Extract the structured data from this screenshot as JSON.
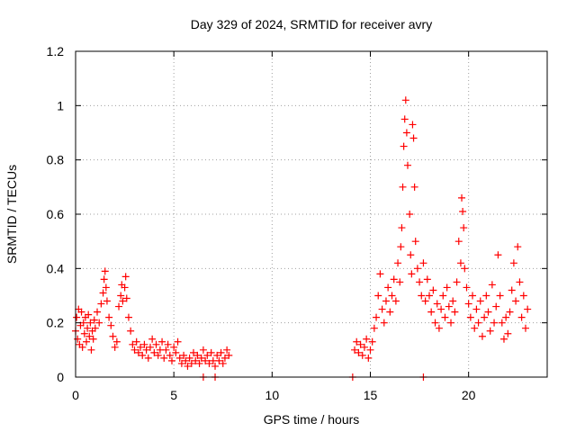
{
  "chart_data": {
    "type": "scatter",
    "title": "Day 329 of 2024, SRMTID for receiver avry",
    "xlabel": "GPS time / hours",
    "ylabel": "SRMTID / TECUs",
    "xlim": [
      0,
      24
    ],
    "ylim": [
      0,
      1.2
    ],
    "xticks": [
      0,
      5,
      10,
      15,
      20
    ],
    "xtick_labels": [
      "0",
      "5",
      "10",
      "15",
      "20"
    ],
    "yticks": [
      0,
      0.2,
      0.4,
      0.6,
      0.8,
      1,
      1.2
    ],
    "ytick_labels": [
      "0",
      "0.2",
      "0.4",
      "0.6",
      "0.8",
      "1",
      "1.2"
    ],
    "grid": true,
    "marker": "+",
    "color": "#ff0000",
    "series": [
      {
        "name": "SRMTID",
        "points": [
          [
            0.0,
            0.17
          ],
          [
            0.05,
            0.22
          ],
          [
            0.1,
            0.14
          ],
          [
            0.15,
            0.25
          ],
          [
            0.2,
            0.12
          ],
          [
            0.25,
            0.19
          ],
          [
            0.3,
            0.24
          ],
          [
            0.35,
            0.11
          ],
          [
            0.4,
            0.2
          ],
          [
            0.45,
            0.16
          ],
          [
            0.5,
            0.22
          ],
          [
            0.55,
            0.13
          ],
          [
            0.6,
            0.18
          ],
          [
            0.65,
            0.23
          ],
          [
            0.7,
            0.15
          ],
          [
            0.75,
            0.2
          ],
          [
            0.8,
            0.1
          ],
          [
            0.85,
            0.17
          ],
          [
            0.9,
            0.14
          ],
          [
            0.95,
            0.21
          ],
          [
            1.0,
            0.18
          ],
          [
            1.1,
            0.24
          ],
          [
            1.2,
            0.2
          ],
          [
            1.3,
            0.27
          ],
          [
            1.4,
            0.31
          ],
          [
            1.45,
            0.36
          ],
          [
            1.5,
            0.39
          ],
          [
            1.55,
            0.33
          ],
          [
            1.6,
            0.28
          ],
          [
            1.7,
            0.22
          ],
          [
            1.8,
            0.19
          ],
          [
            1.9,
            0.15
          ],
          [
            2.0,
            0.11
          ],
          [
            2.1,
            0.13
          ],
          [
            2.2,
            0.26
          ],
          [
            2.3,
            0.3
          ],
          [
            2.35,
            0.34
          ],
          [
            2.4,
            0.28
          ],
          [
            2.5,
            0.33
          ],
          [
            2.55,
            0.37
          ],
          [
            2.6,
            0.29
          ],
          [
            2.7,
            0.22
          ],
          [
            2.8,
            0.17
          ],
          [
            2.9,
            0.12
          ],
          [
            3.0,
            0.1
          ],
          [
            3.1,
            0.13
          ],
          [
            3.2,
            0.09
          ],
          [
            3.3,
            0.11
          ],
          [
            3.4,
            0.08
          ],
          [
            3.5,
            0.12
          ],
          [
            3.6,
            0.1
          ],
          [
            3.7,
            0.07
          ],
          [
            3.8,
            0.11
          ],
          [
            3.9,
            0.14
          ],
          [
            4.0,
            0.09
          ],
          [
            4.1,
            0.12
          ],
          [
            4.2,
            0.08
          ],
          [
            4.3,
            0.1
          ],
          [
            4.4,
            0.13
          ],
          [
            4.5,
            0.07
          ],
          [
            4.6,
            0.1
          ],
          [
            4.7,
            0.12
          ],
          [
            4.8,
            0.08
          ],
          [
            4.9,
            0.06
          ],
          [
            5.0,
            0.11
          ],
          [
            5.1,
            0.09
          ],
          [
            5.2,
            0.13
          ],
          [
            5.3,
            0.07
          ],
          [
            5.4,
            0.05
          ],
          [
            5.5,
            0.08
          ],
          [
            5.6,
            0.06
          ],
          [
            5.7,
            0.04
          ],
          [
            5.8,
            0.07
          ],
          [
            5.9,
            0.05
          ],
          [
            6.0,
            0.09
          ],
          [
            6.1,
            0.06
          ],
          [
            6.2,
            0.08
          ],
          [
            6.3,
            0.05
          ],
          [
            6.4,
            0.07
          ],
          [
            6.5,
            0.1
          ],
          [
            6.6,
            0.06
          ],
          [
            6.7,
            0.08
          ],
          [
            6.8,
            0.05
          ],
          [
            6.9,
            0.09
          ],
          [
            7.0,
            0.06
          ],
          [
            7.1,
            0.04
          ],
          [
            7.2,
            0.08
          ],
          [
            7.3,
            0.06
          ],
          [
            7.4,
            0.09
          ],
          [
            7.5,
            0.05
          ],
          [
            7.6,
            0.07
          ],
          [
            7.7,
            0.1
          ],
          [
            7.8,
            0.08
          ],
          [
            6.5,
            0.0
          ],
          [
            7.1,
            0.0
          ],
          [
            14.1,
            0.0
          ],
          [
            17.7,
            0.0
          ],
          [
            14.2,
            0.1
          ],
          [
            14.3,
            0.13
          ],
          [
            14.4,
            0.09
          ],
          [
            14.5,
            0.12
          ],
          [
            14.6,
            0.08
          ],
          [
            14.7,
            0.11
          ],
          [
            14.8,
            0.14
          ],
          [
            14.9,
            0.07
          ],
          [
            15.0,
            0.1
          ],
          [
            15.1,
            0.13
          ],
          [
            15.2,
            0.18
          ],
          [
            15.3,
            0.22
          ],
          [
            15.4,
            0.3
          ],
          [
            15.5,
            0.38
          ],
          [
            15.6,
            0.25
          ],
          [
            15.7,
            0.2
          ],
          [
            15.8,
            0.28
          ],
          [
            15.9,
            0.33
          ],
          [
            16.0,
            0.24
          ],
          [
            16.1,
            0.3
          ],
          [
            16.2,
            0.36
          ],
          [
            16.3,
            0.28
          ],
          [
            16.4,
            0.42
          ],
          [
            16.5,
            0.35
          ],
          [
            16.55,
            0.48
          ],
          [
            16.6,
            0.55
          ],
          [
            16.65,
            0.7
          ],
          [
            16.7,
            0.85
          ],
          [
            16.75,
            0.95
          ],
          [
            16.8,
            1.02
          ],
          [
            16.85,
            0.9
          ],
          [
            16.9,
            0.78
          ],
          [
            17.0,
            0.6
          ],
          [
            17.05,
            0.45
          ],
          [
            17.1,
            0.38
          ],
          [
            17.15,
            0.93
          ],
          [
            17.2,
            0.88
          ],
          [
            17.25,
            0.7
          ],
          [
            17.3,
            0.5
          ],
          [
            17.4,
            0.4
          ],
          [
            17.5,
            0.35
          ],
          [
            17.6,
            0.3
          ],
          [
            17.7,
            0.42
          ],
          [
            17.8,
            0.28
          ],
          [
            17.9,
            0.36
          ],
          [
            18.0,
            0.3
          ],
          [
            18.1,
            0.24
          ],
          [
            18.2,
            0.32
          ],
          [
            18.3,
            0.2
          ],
          [
            18.4,
            0.27
          ],
          [
            18.5,
            0.18
          ],
          [
            18.6,
            0.25
          ],
          [
            18.7,
            0.3
          ],
          [
            18.8,
            0.22
          ],
          [
            18.9,
            0.33
          ],
          [
            19.0,
            0.26
          ],
          [
            19.1,
            0.2
          ],
          [
            19.2,
            0.28
          ],
          [
            19.3,
            0.24
          ],
          [
            19.4,
            0.35
          ],
          [
            19.5,
            0.5
          ],
          [
            19.6,
            0.42
          ],
          [
            19.65,
            0.66
          ],
          [
            19.7,
            0.61
          ],
          [
            19.75,
            0.55
          ],
          [
            19.8,
            0.4
          ],
          [
            19.9,
            0.33
          ],
          [
            20.0,
            0.27
          ],
          [
            20.1,
            0.22
          ],
          [
            20.2,
            0.3
          ],
          [
            20.3,
            0.18
          ],
          [
            20.4,
            0.25
          ],
          [
            20.5,
            0.2
          ],
          [
            20.6,
            0.28
          ],
          [
            20.7,
            0.15
          ],
          [
            20.8,
            0.22
          ],
          [
            20.9,
            0.3
          ],
          [
            21.0,
            0.24
          ],
          [
            21.1,
            0.17
          ],
          [
            21.2,
            0.34
          ],
          [
            21.3,
            0.2
          ],
          [
            21.4,
            0.26
          ],
          [
            21.5,
            0.45
          ],
          [
            21.6,
            0.3
          ],
          [
            21.7,
            0.2
          ],
          [
            21.8,
            0.14
          ],
          [
            21.9,
            0.22
          ],
          [
            22.0,
            0.16
          ],
          [
            22.1,
            0.24
          ],
          [
            22.2,
            0.32
          ],
          [
            22.3,
            0.42
          ],
          [
            22.4,
            0.28
          ],
          [
            22.5,
            0.48
          ],
          [
            22.6,
            0.35
          ],
          [
            22.7,
            0.22
          ],
          [
            22.8,
            0.3
          ],
          [
            22.9,
            0.18
          ],
          [
            23.0,
            0.25
          ]
        ]
      }
    ]
  }
}
